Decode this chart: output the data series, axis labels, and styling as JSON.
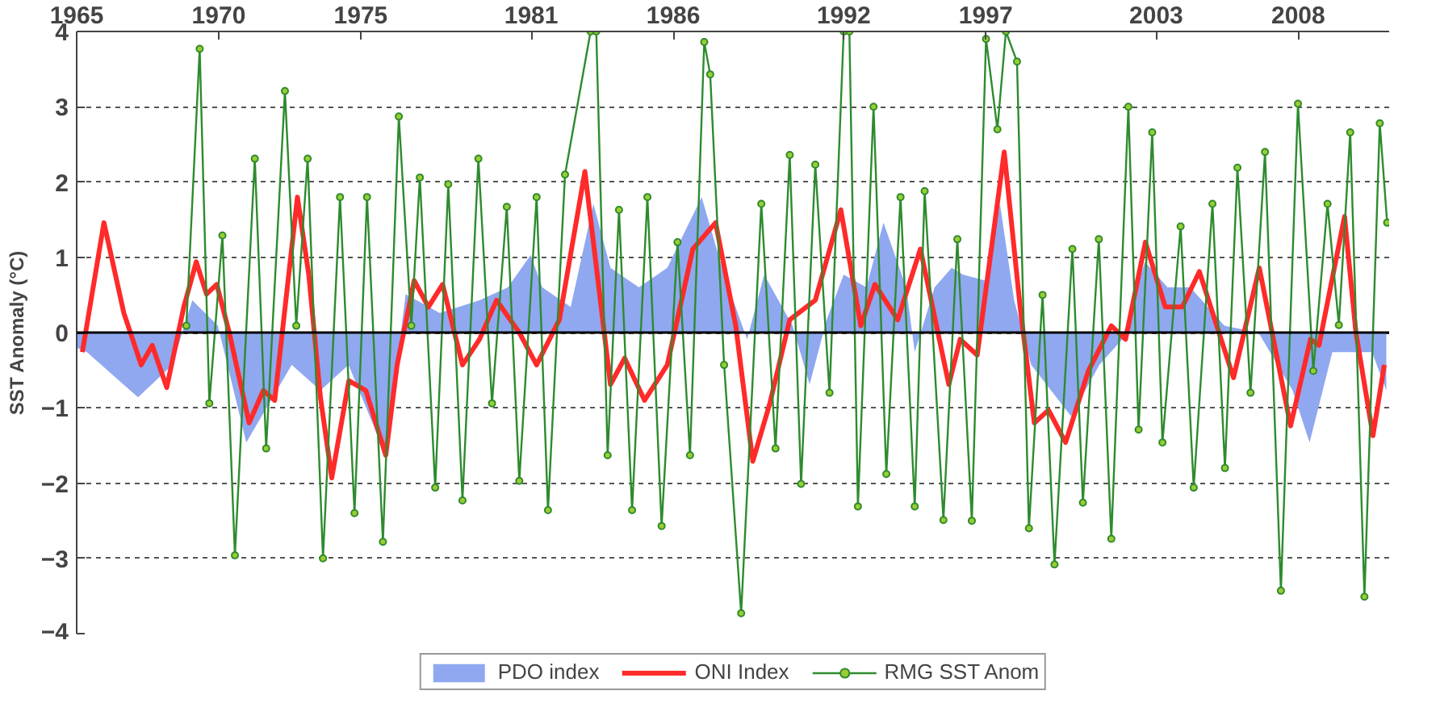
{
  "chart_data": {
    "type": "line",
    "ylabel": "SST Anomaly (°C)",
    "xlim": [
      1965,
      2011.2
    ],
    "ylim": [
      -4,
      4
    ],
    "xticks": [
      1965,
      1970,
      1975,
      1981,
      1986,
      1992,
      1997,
      2003,
      2008
    ],
    "yticks": [
      -4,
      -3,
      -2,
      -1,
      0,
      1,
      2,
      3,
      4
    ],
    "grid": "y",
    "legend": "bottom",
    "ref_lines": [
      {
        "axis": "y",
        "value": 0,
        "color": "#000000"
      }
    ],
    "series": [
      {
        "name": "PDO index",
        "type": "area",
        "color": "#8fa8f0",
        "x": [
          1965,
          1965.36,
          1967.16,
          1968.37,
          1969.07,
          1969.97,
          1970.97,
          1972.57,
          1973.58,
          1974.57,
          1975.88,
          1976.58,
          1977.78,
          1979.18,
          1980.18,
          1980.98,
          1981.39,
          1982.39,
          1983.19,
          1983.79,
          1984.79,
          1985.79,
          1987.0,
          1987.79,
          1988.6,
          1989.2,
          1990.2,
          1990.8,
          1991.4,
          1992.0,
          1992.8,
          1993.4,
          1994.2,
          1994.5,
          1995.2,
          1995.8,
          1996.2,
          1997.0,
          1997.5,
          1998.0,
          1998.6,
          2000.0,
          2001.0,
          2001.8,
          2002.6,
          2003.4,
          2004.2,
          2005.4,
          2006.6,
          2007.8,
          2008.4,
          2009.2,
          2010.6,
          2011.1
        ],
        "values": [
          -0.2,
          -0.26,
          -0.86,
          -0.43,
          0.43,
          0.09,
          -1.46,
          -0.43,
          -0.77,
          -0.43,
          -1.63,
          0.51,
          0.26,
          0.43,
          0.6,
          1.03,
          0.6,
          0.34,
          1.71,
          0.86,
          0.6,
          0.86,
          1.8,
          0.77,
          -0.09,
          0.77,
          0.09,
          -0.69,
          0.17,
          0.77,
          0.6,
          1.46,
          0.6,
          -0.26,
          0.6,
          0.86,
          0.77,
          0.69,
          1.71,
          0.43,
          -0.43,
          -1.11,
          -0.43,
          -0.09,
          0.94,
          0.6,
          0.6,
          0.09,
          0,
          -0.77,
          -1.46,
          -0.26,
          -0.26,
          -0.77
        ]
      },
      {
        "name": "ONI Index",
        "color": "#ff2a2a",
        "marker": "none",
        "x": [
          1965.2,
          1965.96,
          1966.66,
          1967.27,
          1967.66,
          1968.17,
          1968.77,
          1969.21,
          1969.57,
          1969.93,
          1970.37,
          1971.07,
          1971.57,
          1971.97,
          1972.77,
          1973.17,
          1973.58,
          1973.98,
          1974.58,
          1975.18,
          1975.88,
          1976.28,
          1976.88,
          1977.38,
          1977.88,
          1978.58,
          1979.18,
          1979.78,
          1980.58,
          1981.19,
          1981.99,
          1982.89,
          1983.79,
          1984.29,
          1984.99,
          1985.79,
          1986.69,
          1987.49,
          1988.2,
          1988.8,
          1989.4,
          1990.1,
          1991.0,
          1991.9,
          1992.6,
          1993.1,
          1993.9,
          1994.7,
          1995.7,
          1996.1,
          1996.7,
          1997.65,
          1998.21,
          1998.71,
          1999.21,
          1999.81,
          2000.61,
          2001.42,
          2001.92,
          2002.62,
          2003.32,
          2003.92,
          2004.52,
          2005.72,
          2006.63,
          2007.73,
          2008.43,
          2008.73,
          2009.63,
          2010.03,
          2010.63,
          2011.03
        ],
        "values": [
          -0.26,
          1.46,
          0.26,
          -0.43,
          -0.17,
          -0.73,
          0.34,
          0.94,
          0.51,
          0.64,
          0,
          -1.2,
          -0.77,
          -0.9,
          1.8,
          0.77,
          -0.86,
          -1.93,
          -0.64,
          -0.77,
          -1.63,
          -0.43,
          0.69,
          0.34,
          0.64,
          -0.43,
          -0.09,
          0.43,
          0,
          -0.43,
          0.17,
          2.14,
          -0.69,
          -0.34,
          -0.9,
          -0.43,
          1.11,
          1.46,
          0.09,
          -1.71,
          -0.94,
          0.17,
          0.43,
          1.63,
          0.09,
          0.64,
          0.17,
          1.11,
          -0.69,
          -0.09,
          -0.3,
          2.4,
          0.34,
          -1.2,
          -1.03,
          -1.46,
          -0.51,
          0.09,
          -0.09,
          1.2,
          0.34,
          0.34,
          0.81,
          -0.6,
          0.86,
          -1.24,
          -0.09,
          -0.17,
          1.54,
          0,
          -1.37,
          -0.43
        ]
      },
      {
        "name": "RMG SST Anom",
        "color": "#2e8b2e",
        "marker": "circle",
        "x": [
          1968.86,
          1969.33,
          1969.67,
          1970.13,
          1970.57,
          1971.27,
          1971.67,
          1972.33,
          1972.73,
          1973.13,
          1973.67,
          1974.27,
          1974.78,
          1975.22,
          1975.78,
          1976.34,
          1976.78,
          1977.08,
          1977.62,
          1978.08,
          1978.58,
          1979.14,
          1979.62,
          1980.14,
          1980.58,
          1981.19,
          1981.59,
          1982.19,
          1983.09,
          1983.29,
          1983.69,
          1984.09,
          1984.55,
          1985.09,
          1985.59,
          1986.15,
          1986.59,
          1987.09,
          1987.3,
          1987.79,
          1988.39,
          1989.1,
          1989.6,
          1990.1,
          1990.5,
          1991.0,
          1991.5,
          1992.0,
          1992.2,
          1992.5,
          1993.05,
          1993.5,
          1994.0,
          1994.5,
          1994.85,
          1995.51,
          1996.0,
          1996.51,
          1997.01,
          1997.41,
          1997.71,
          1998.1,
          1998.52,
          1999.0,
          1999.42,
          2000.05,
          2000.42,
          2000.98,
          2001.42,
          2002.02,
          2002.38,
          2002.86,
          2003.22,
          2003.86,
          2004.32,
          2004.98,
          2005.42,
          2005.86,
          2006.32,
          2006.83,
          2007.39,
          2007.99,
          2008.53,
          2009.03,
          2009.43,
          2009.83,
          2010.33,
          2010.87,
          2011.13
        ],
        "values": [
          0.09,
          3.77,
          -0.94,
          1.29,
          -2.96,
          2.31,
          -1.54,
          3.21,
          0.09,
          2.31,
          -3.0,
          1.8,
          -2.4,
          1.8,
          -2.78,
          2.87,
          0.09,
          2.06,
          -2.06,
          1.97,
          -2.23,
          2.31,
          -0.94,
          1.67,
          -1.97,
          1.8,
          -2.36,
          2.1,
          4.0,
          4.0,
          -1.63,
          1.63,
          -2.36,
          1.8,
          -2.57,
          1.2,
          -1.63,
          3.86,
          3.43,
          -0.43,
          -3.73,
          1.71,
          -1.54,
          2.36,
          -2.01,
          2.23,
          -0.8,
          4.0,
          4.0,
          -2.31,
          3.0,
          -1.88,
          1.8,
          -2.31,
          1.88,
          -2.49,
          1.24,
          -2.5,
          3.9,
          2.7,
          4.0,
          3.6,
          -2.6,
          0.5,
          -3.08,
          1.11,
          -2.26,
          1.24,
          -2.74,
          3.0,
          -1.29,
          2.66,
          -1.46,
          1.41,
          -2.06,
          1.71,
          -1.8,
          2.19,
          -0.8,
          2.4,
          -3.43,
          3.04,
          -0.51,
          1.71,
          0.1,
          2.66,
          -3.51,
          2.78,
          1.46
        ]
      }
    ]
  }
}
